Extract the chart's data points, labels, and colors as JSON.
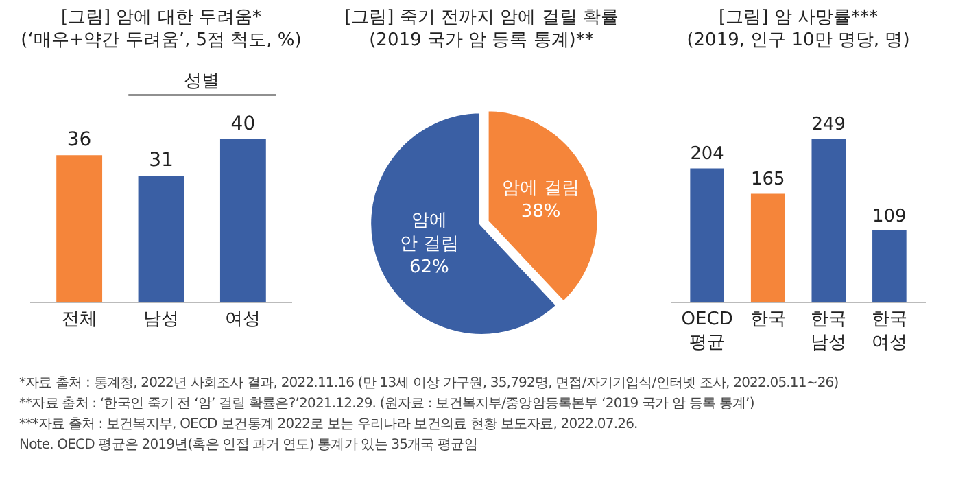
{
  "chart_data": [
    {
      "type": "bar",
      "title": "[그림] 암에 대한 두려움*\n(‘매우+약간 두려움’, 5점 척도, %)",
      "categories": [
        "전체",
        "남성",
        "여성"
      ],
      "values": [
        36,
        31,
        40
      ],
      "colors": [
        "#f5853a",
        "#3a5fa4",
        "#3a5fa4"
      ],
      "data_labels": true,
      "annotations": [
        "성별"
      ]
    },
    {
      "type": "pie",
      "title": "[그림] 죽기 전까지 암에 걸릴 확률\n(2019 국가 암 등록 통계)**",
      "categories": [
        "암에 걸림",
        "암에\n안 걸림"
      ],
      "values": [
        38,
        62
      ],
      "value_labels": [
        "38%",
        "62%"
      ],
      "colors": [
        "#f5853a",
        "#3a5fa4"
      ]
    },
    {
      "type": "bar",
      "title": "[그림] 암 사망률***\n(2019, 인구 10만 명당, 명)",
      "categories": [
        "OECD\n평균",
        "한국",
        "한국\n남성",
        "한국\n여성"
      ],
      "values": [
        204,
        165,
        249,
        109
      ],
      "colors": [
        "#3a5fa4",
        "#f5853a",
        "#3a5fa4",
        "#3a5fa4"
      ],
      "data_labels": true,
      "annotations": [
        "*자료 출처 : 통계청, 2022년 사회조사 결과, 2022.11.16 (만 13세 이상 가구원, 35,792명, 면접/자기기입식/인터넷 조사, 2022.05.11~26)",
        "**자료 출처 : ‘한국인 죽기 전 ‘암’ 걸릴 확률은?’2021.12.29. (원자료 : 보건복지부/중앙암등록본부 ‘2019 국가 암 등록 통계’)",
        "***자료 출처 : 보건복지부, OECD 보건통계 2022로 보는 우리나라 보건의료 현황 보도자료, 2022.07.26.",
        "Note. OECD 평균은 2019년(혹은 인접 과거 연도) 통계가 있는 35개국 평균임"
      ]
    }
  ]
}
